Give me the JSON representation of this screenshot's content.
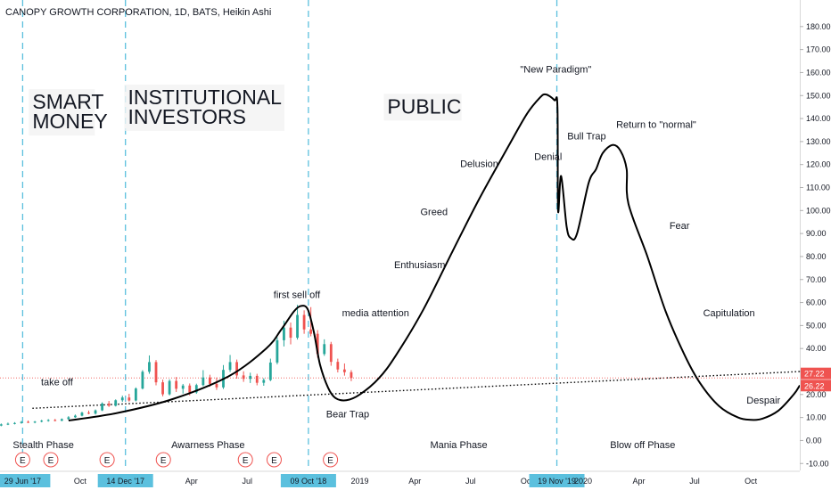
{
  "header": {
    "title": "CANOPY GROWTH CORPORATION, 1D, BATS, Heikin Ashi"
  },
  "colors": {
    "background": "#ffffff",
    "up_candle": "#26a69a",
    "down_candle": "#ef5350",
    "phase_line": "#5bc0de",
    "curve": "#000000",
    "price_line": "#ef5350",
    "tag_bg": "#5bc0de",
    "price_tag_bg": "#ef5350",
    "earnings_marker": "#ef5350"
  },
  "chart_data": {
    "type": "candlestick",
    "title": "CANOPY GROWTH CORPORATION, 1D, BATS, Heikin Ashi",
    "y_ticks": [
      180,
      170,
      160,
      150,
      140,
      130,
      120,
      110,
      100,
      90,
      80,
      70,
      60,
      50,
      40,
      30,
      20,
      10,
      0,
      -10
    ],
    "y_tick_labels": [
      "180.00",
      "170.00",
      "160.00",
      "150.00",
      "140.00",
      "130.00",
      "120.00",
      "110.00",
      "100.00",
      "90.00",
      "80.00",
      "70.00",
      "60.00",
      "50.00",
      "40.00",
      "30.00",
      "20.00",
      "10.00",
      "0.00",
      "-10.00"
    ],
    "ylim": [
      -13,
      190
    ],
    "x_start": "2017-05-23",
    "x_end": "2020-12-20",
    "x_ticks": [
      {
        "date": "2017-06-29",
        "label": "29 Jun '17",
        "highlight": true
      },
      {
        "date": "2017-10-01",
        "label": "Oct",
        "highlight": false
      },
      {
        "date": "2017-12-14",
        "label": "14 Dec '17",
        "highlight": true
      },
      {
        "date": "2018-04-01",
        "label": "Apr",
        "highlight": false
      },
      {
        "date": "2018-07-01",
        "label": "Jul",
        "highlight": false
      },
      {
        "date": "2018-10-09",
        "label": "09 Oct '18",
        "highlight": true
      },
      {
        "date": "2019-01-01",
        "label": "2019",
        "highlight": false
      },
      {
        "date": "2019-04-01",
        "label": "Apr",
        "highlight": false
      },
      {
        "date": "2019-07-01",
        "label": "Jul",
        "highlight": false
      },
      {
        "date": "2019-10-01",
        "label": "Oct",
        "highlight": false
      },
      {
        "date": "2019-11-19",
        "label": "19 Nov '19",
        "highlight": true
      },
      {
        "date": "2020-01-01",
        "label": "2020",
        "highlight": false
      },
      {
        "date": "2020-04-01",
        "label": "Apr",
        "highlight": false
      },
      {
        "date": "2020-07-01",
        "label": "Jul",
        "highlight": false
      },
      {
        "date": "2020-10-01",
        "label": "Oct",
        "highlight": false
      }
    ],
    "phase_lines": [
      "2017-06-29",
      "2017-12-14",
      "2018-10-09",
      "2019-11-19"
    ],
    "price_lines": [
      {
        "value": 27.22,
        "label": "27.22"
      },
      {
        "value": 26.22,
        "label": "26.22"
      }
    ],
    "earnings_dates": [
      "2017-06-29",
      "2017-08-14",
      "2017-11-14",
      "2018-02-14",
      "2018-06-28",
      "2018-08-14",
      "2018-11-14"
    ],
    "earnings_label": "E",
    "candles": [
      {
        "x": "2017-05-25",
        "o": 6.5,
        "h": 7.4,
        "l": 6.2,
        "c": 7.0
      },
      {
        "x": "2017-06-05",
        "o": 7.0,
        "h": 7.8,
        "l": 6.7,
        "c": 7.3
      },
      {
        "x": "2017-06-16",
        "o": 7.3,
        "h": 8.0,
        "l": 7.0,
        "c": 7.6
      },
      {
        "x": "2017-06-27",
        "o": 7.6,
        "h": 8.5,
        "l": 7.3,
        "c": 8.1
      },
      {
        "x": "2017-07-08",
        "o": 8.1,
        "h": 8.7,
        "l": 7.6,
        "c": 7.9
      },
      {
        "x": "2017-07-19",
        "o": 7.9,
        "h": 8.5,
        "l": 7.5,
        "c": 8.2
      },
      {
        "x": "2017-07-30",
        "o": 8.2,
        "h": 9.0,
        "l": 7.9,
        "c": 8.6
      },
      {
        "x": "2017-08-10",
        "o": 8.6,
        "h": 9.3,
        "l": 8.2,
        "c": 8.9
      },
      {
        "x": "2017-08-21",
        "o": 8.9,
        "h": 9.4,
        "l": 8.3,
        "c": 8.6
      },
      {
        "x": "2017-09-01",
        "o": 8.6,
        "h": 9.6,
        "l": 8.4,
        "c": 9.3
      },
      {
        "x": "2017-09-12",
        "o": 9.3,
        "h": 10.6,
        "l": 9.0,
        "c": 10.1
      },
      {
        "x": "2017-09-23",
        "o": 10.1,
        "h": 11.3,
        "l": 9.8,
        "c": 10.8
      },
      {
        "x": "2017-10-04",
        "o": 10.8,
        "h": 12.5,
        "l": 10.5,
        "c": 12.1
      },
      {
        "x": "2017-10-15",
        "o": 12.1,
        "h": 13.0,
        "l": 11.4,
        "c": 11.7
      },
      {
        "x": "2017-10-26",
        "o": 11.7,
        "h": 13.5,
        "l": 11.3,
        "c": 13.1
      },
      {
        "x": "2017-11-06",
        "o": 13.1,
        "h": 16.6,
        "l": 12.8,
        "c": 16.1
      },
      {
        "x": "2017-11-17",
        "o": 16.1,
        "h": 17.2,
        "l": 14.6,
        "c": 15.1
      },
      {
        "x": "2017-11-28",
        "o": 15.1,
        "h": 17.9,
        "l": 14.8,
        "c": 17.5
      },
      {
        "x": "2017-12-09",
        "o": 17.5,
        "h": 19.5,
        "l": 16.8,
        "c": 18.7
      },
      {
        "x": "2017-12-20",
        "o": 18.7,
        "h": 20.3,
        "l": 16.9,
        "c": 17.4
      },
      {
        "x": "2017-12-31",
        "o": 17.4,
        "h": 23.1,
        "l": 17.0,
        "c": 22.6
      },
      {
        "x": "2018-01-11",
        "o": 22.6,
        "h": 30.6,
        "l": 22.2,
        "c": 29.9
      },
      {
        "x": "2018-01-22",
        "o": 29.9,
        "h": 37.0,
        "l": 29.0,
        "c": 34.1
      },
      {
        "x": "2018-02-02",
        "o": 34.1,
        "h": 35.0,
        "l": 24.0,
        "c": 25.3
      },
      {
        "x": "2018-02-13",
        "o": 25.3,
        "h": 26.5,
        "l": 19.2,
        "c": 20.1
      },
      {
        "x": "2018-02-24",
        "o": 20.1,
        "h": 26.6,
        "l": 19.6,
        "c": 25.9
      },
      {
        "x": "2018-03-07",
        "o": 25.9,
        "h": 27.6,
        "l": 21.1,
        "c": 22.5
      },
      {
        "x": "2018-03-18",
        "o": 22.5,
        "h": 24.6,
        "l": 20.4,
        "c": 23.9
      },
      {
        "x": "2018-03-29",
        "o": 23.9,
        "h": 24.8,
        "l": 19.6,
        "c": 20.9
      },
      {
        "x": "2018-04-09",
        "o": 20.9,
        "h": 24.7,
        "l": 20.3,
        "c": 24.1
      },
      {
        "x": "2018-04-20",
        "o": 24.1,
        "h": 30.6,
        "l": 23.6,
        "c": 27.4
      },
      {
        "x": "2018-05-01",
        "o": 27.4,
        "h": 28.6,
        "l": 23.4,
        "c": 24.6
      },
      {
        "x": "2018-05-12",
        "o": 24.6,
        "h": 27.4,
        "l": 22.0,
        "c": 23.1
      },
      {
        "x": "2018-05-23",
        "o": 23.1,
        "h": 32.8,
        "l": 22.4,
        "c": 30.7
      },
      {
        "x": "2018-06-03",
        "o": 30.7,
        "h": 37.2,
        "l": 29.8,
        "c": 34.1
      },
      {
        "x": "2018-06-14",
        "o": 34.1,
        "h": 35.2,
        "l": 26.9,
        "c": 28.3
      },
      {
        "x": "2018-06-25",
        "o": 28.3,
        "h": 30.1,
        "l": 25.5,
        "c": 26.8
      },
      {
        "x": "2018-07-06",
        "o": 26.8,
        "h": 29.5,
        "l": 25.0,
        "c": 28.1
      },
      {
        "x": "2018-07-17",
        "o": 28.1,
        "h": 29.0,
        "l": 24.0,
        "c": 25.1
      },
      {
        "x": "2018-07-28",
        "o": 25.1,
        "h": 27.1,
        "l": 23.8,
        "c": 26.3
      },
      {
        "x": "2018-08-08",
        "o": 26.3,
        "h": 35.6,
        "l": 25.8,
        "c": 33.9
      },
      {
        "x": "2018-08-19",
        "o": 33.9,
        "h": 44.9,
        "l": 33.1,
        "c": 43.6
      },
      {
        "x": "2018-08-30",
        "o": 43.6,
        "h": 52.1,
        "l": 40.9,
        "c": 49.1
      },
      {
        "x": "2018-09-10",
        "o": 49.1,
        "h": 51.3,
        "l": 41.8,
        "c": 44.7
      },
      {
        "x": "2018-09-21",
        "o": 44.7,
        "h": 59.0,
        "l": 43.9,
        "c": 54.6
      },
      {
        "x": "2018-10-02",
        "o": 54.6,
        "h": 56.6,
        "l": 46.4,
        "c": 48.3
      },
      {
        "x": "2018-10-13",
        "o": 48.3,
        "h": 58.0,
        "l": 45.3,
        "c": 46.4
      },
      {
        "x": "2018-10-24",
        "o": 46.4,
        "h": 48.0,
        "l": 36.0,
        "c": 37.6
      },
      {
        "x": "2018-11-04",
        "o": 37.6,
        "h": 44.0,
        "l": 36.8,
        "c": 41.9
      },
      {
        "x": "2018-11-15",
        "o": 41.9,
        "h": 42.9,
        "l": 32.5,
        "c": 34.2
      },
      {
        "x": "2018-11-26",
        "o": 34.2,
        "h": 35.6,
        "l": 29.6,
        "c": 30.9
      },
      {
        "x": "2018-12-07",
        "o": 30.9,
        "h": 33.5,
        "l": 28.2,
        "c": 29.7
      },
      {
        "x": "2018-12-18",
        "o": 29.7,
        "h": 30.6,
        "l": 25.8,
        "c": 27.2
      }
    ],
    "curve_points": [
      [
        "2017-09-12",
        8.7
      ],
      [
        "2017-12-01",
        12
      ],
      [
        "2018-03-01",
        18
      ],
      [
        "2018-06-01",
        28
      ],
      [
        "2018-08-01",
        40
      ],
      [
        "2018-08-25",
        48
      ],
      [
        "2018-09-15",
        56
      ],
      [
        "2018-09-27",
        58.5
      ],
      [
        "2018-10-08",
        57
      ],
      [
        "2018-10-18",
        47
      ],
      [
        "2018-10-28",
        33
      ],
      [
        "2018-11-10",
        23
      ],
      [
        "2018-11-22",
        18.5
      ],
      [
        "2018-12-10",
        17.5
      ],
      [
        "2019-01-01",
        20
      ],
      [
        "2019-02-01",
        27
      ],
      [
        "2019-03-01",
        37
      ],
      [
        "2019-04-15",
        57
      ],
      [
        "2019-06-01",
        82
      ],
      [
        "2019-07-15",
        105
      ],
      [
        "2019-09-01",
        128
      ],
      [
        "2019-10-01",
        142
      ],
      [
        "2019-10-22",
        149
      ],
      [
        "2019-11-01",
        150.5
      ],
      [
        "2019-11-15",
        148
      ],
      [
        "2019-11-20",
        145
      ],
      [
        "2019-11-21",
        100
      ],
      [
        "2019-11-26",
        115
      ],
      [
        "2019-12-05",
        93
      ],
      [
        "2019-12-12",
        88
      ],
      [
        "2019-12-22",
        90
      ],
      [
        "2020-01-10",
        112
      ],
      [
        "2020-01-22",
        118
      ],
      [
        "2020-02-02",
        125
      ],
      [
        "2020-02-18",
        128.5
      ],
      [
        "2020-03-02",
        126
      ],
      [
        "2020-03-12",
        118
      ],
      [
        "2020-03-15",
        103
      ],
      [
        "2020-04-15",
        80
      ],
      [
        "2020-05-15",
        56
      ],
      [
        "2020-06-15",
        37
      ],
      [
        "2020-07-10",
        25
      ],
      [
        "2020-08-10",
        15
      ],
      [
        "2020-09-10",
        10
      ],
      [
        "2020-10-01",
        9
      ],
      [
        "2020-10-20",
        9.5
      ],
      [
        "2020-11-15",
        13
      ],
      [
        "2020-12-10",
        20
      ],
      [
        "2020-12-20",
        24
      ]
    ],
    "trendline": {
      "from": [
        "2017-07-15",
        14
      ],
      "to": [
        "2020-12-20",
        30
      ]
    },
    "stage_labels": [
      {
        "text_lines": [
          "SMART",
          "MONEY"
        ],
        "x": "2017-07-15",
        "y_top": 152
      },
      {
        "text_lines": [
          "INSTITUTIONAL",
          "INVESTORS"
        ],
        "x": "2017-12-18",
        "y_top": 154
      },
      {
        "text_lines": [
          "PUBLIC"
        ],
        "x": "2019-02-15",
        "y_top": 150
      }
    ],
    "annotations": [
      {
        "text": "take off",
        "x": "2017-07-29",
        "y": 24
      },
      {
        "text": "first sell off",
        "x": "2018-08-13",
        "y": 62
      },
      {
        "text": "media attention",
        "x": "2018-12-03",
        "y": 54
      },
      {
        "text": "Bear Trap",
        "x": "2018-11-07",
        "y": 10
      },
      {
        "text": "Enthusiasm",
        "x": "2019-02-26",
        "y": 75
      },
      {
        "text": "Greed",
        "x": "2019-04-10",
        "y": 98
      },
      {
        "text": "Delusion",
        "x": "2019-06-14",
        "y": 119
      },
      {
        "text": "\"New Paradigm\"",
        "x": "2019-09-20",
        "y": 160
      },
      {
        "text": "Denial",
        "x": "2019-10-13",
        "y": 122
      },
      {
        "text": "Bull Trap",
        "x": "2019-12-06",
        "y": 131
      },
      {
        "text": "Return to \"normal\"",
        "x": "2020-02-24",
        "y": 136
      },
      {
        "text": "Fear",
        "x": "2020-05-21",
        "y": 92
      },
      {
        "text": "Capitulation",
        "x": "2020-07-15",
        "y": 54
      },
      {
        "text": "Despair",
        "x": "2020-09-24",
        "y": 16
      }
    ],
    "phase_labels": [
      {
        "text": "Stealth Phase",
        "x": "2017-06-13"
      },
      {
        "text": "Awarness Phase",
        "x": "2018-02-27"
      },
      {
        "text": "Mania Phase",
        "x": "2019-04-26"
      },
      {
        "text": "Blow off Phase",
        "x": "2020-02-14"
      }
    ]
  }
}
